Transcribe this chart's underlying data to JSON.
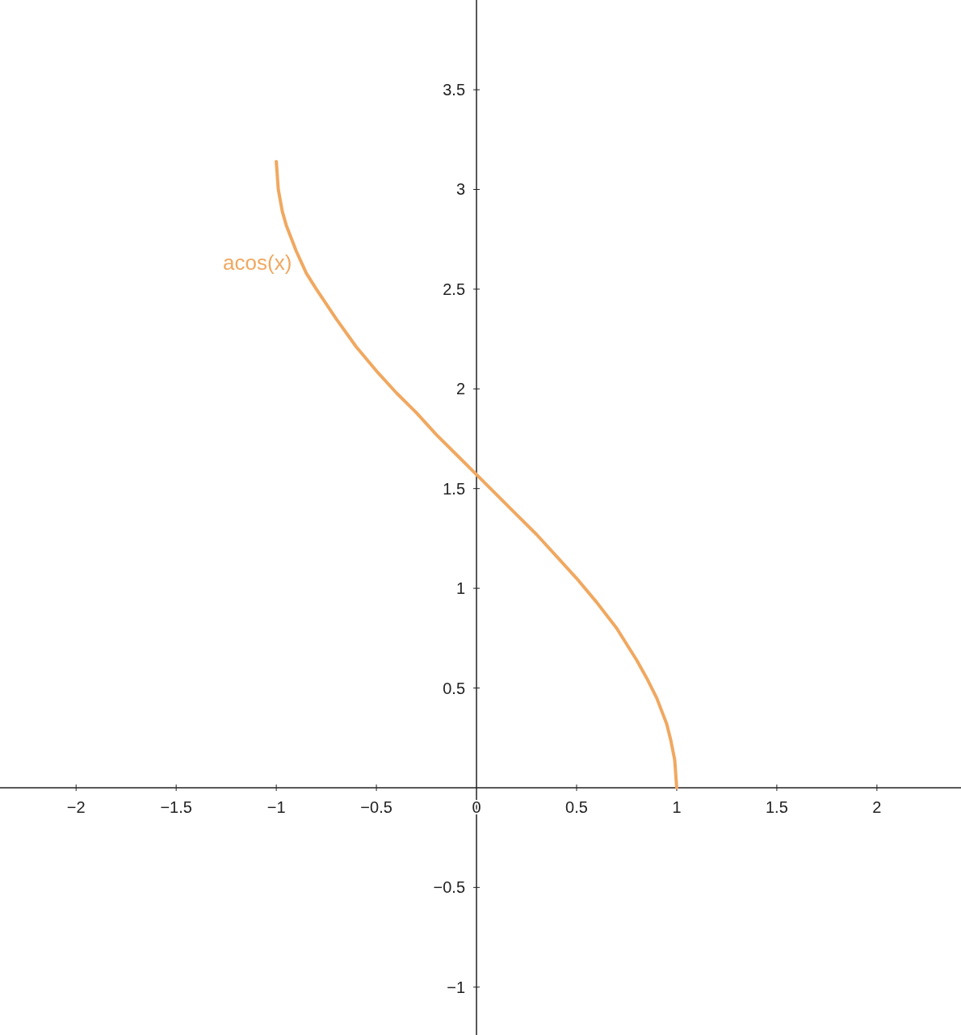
{
  "chart_data": {
    "type": "line",
    "x": [
      -1,
      -0.99,
      -0.97,
      -0.95,
      -0.9,
      -0.85,
      -0.8,
      -0.7,
      -0.6,
      -0.5,
      -0.4,
      -0.3,
      -0.2,
      -0.1,
      0,
      0.1,
      0.2,
      0.3,
      0.4,
      0.5,
      0.6,
      0.7,
      0.8,
      0.85,
      0.9,
      0.95,
      0.97,
      0.99,
      1
    ],
    "series": [
      {
        "name": "acos(x)",
        "color": "#f0a860",
        "values": [
          3.14,
          3.0,
          2.89,
          2.82,
          2.69,
          2.58,
          2.5,
          2.35,
          2.21,
          2.09,
          1.98,
          1.88,
          1.77,
          1.67,
          1.57,
          1.47,
          1.37,
          1.27,
          1.16,
          1.05,
          0.93,
          0.8,
          0.64,
          0.55,
          0.45,
          0.32,
          0.24,
          0.14,
          0
        ]
      }
    ],
    "xlim": [
      -2.38,
      2.42
    ],
    "ylim": [
      -1.24,
      3.95
    ],
    "xticks": [
      {
        "value": -2,
        "label": "−2"
      },
      {
        "value": -1.5,
        "label": "−1.5"
      },
      {
        "value": -1,
        "label": "−1"
      },
      {
        "value": -0.5,
        "label": "−0.5"
      },
      0,
      0.5,
      1,
      1.5,
      2
    ],
    "yticks": [
      {
        "value": -1,
        "label": "−1"
      },
      {
        "value": -0.5,
        "label": "−0.5"
      },
      0.5,
      1,
      1.5,
      2,
      2.5,
      3,
      3.5
    ],
    "grid": false,
    "legend": false,
    "marker": "none",
    "line_style": "solid"
  }
}
